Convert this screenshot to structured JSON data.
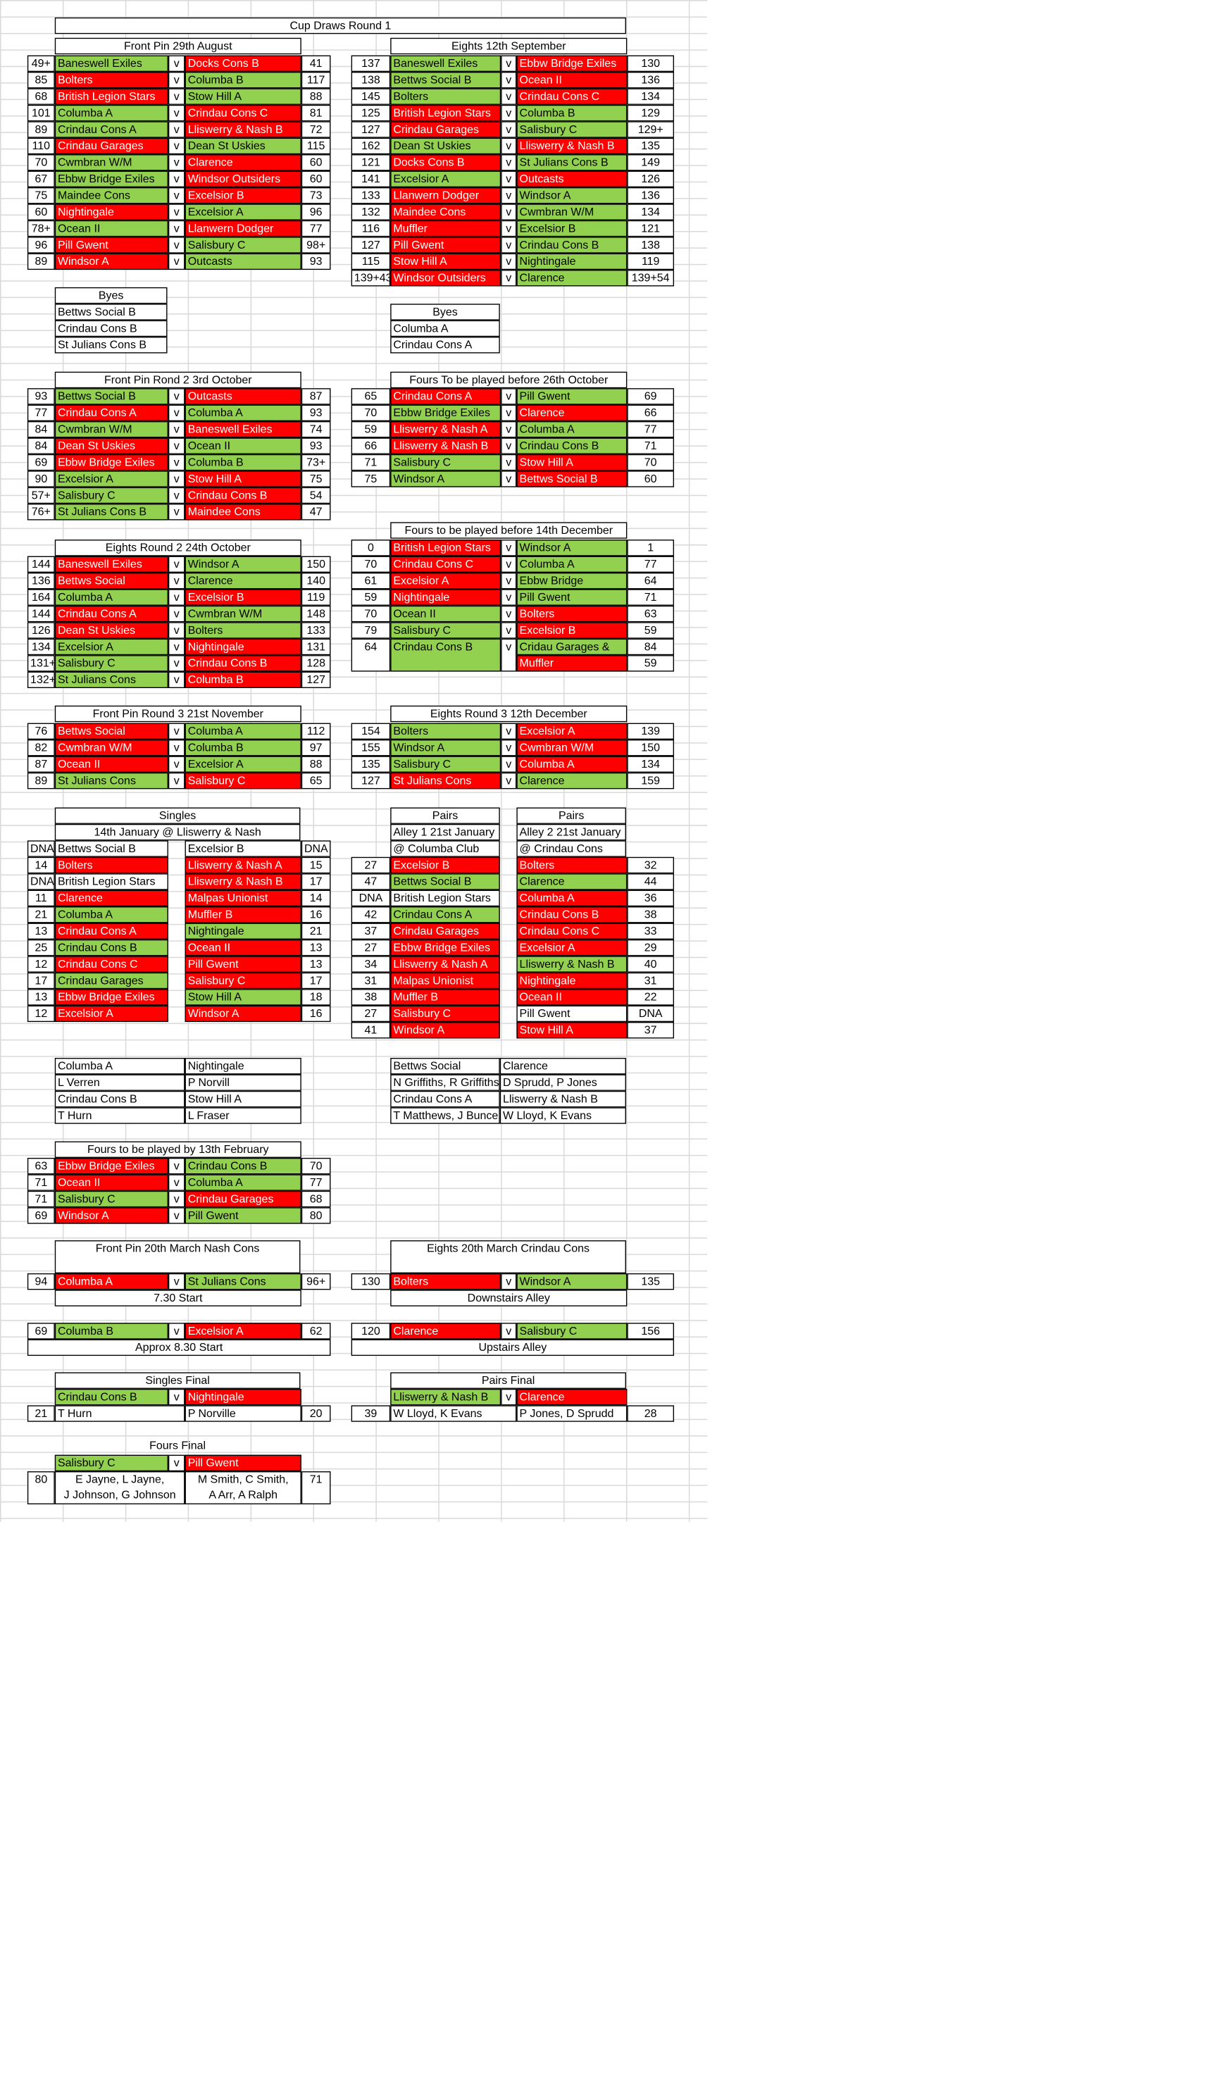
{
  "page_title": "Cup Draws Round 1",
  "tables": [
    {
      "title": "Front Pin  29th August",
      "rows": [
        [
          "49+",
          "Baneswell Exiles",
          "g",
          "Docks Cons B",
          "red",
          "41"
        ],
        [
          "85",
          "Bolters",
          "red",
          "Columba B",
          "g",
          "117"
        ],
        [
          "68",
          "British Legion Stars",
          "red",
          "Stow Hill A",
          "g",
          "88"
        ],
        [
          "101",
          "Columba A",
          "g",
          "Crindau Cons C",
          "red",
          "81"
        ],
        [
          "89",
          "Crindau Cons A",
          "g",
          "Lliswerry & Nash B",
          "red",
          "72"
        ],
        [
          "110",
          "Crindau Garages",
          "red",
          "Dean St Uskies",
          "g",
          "115"
        ],
        [
          "70",
          "Cwmbran W/M",
          "g",
          "Clarence",
          "red",
          "60"
        ],
        [
          "67",
          "Ebbw Bridge Exiles",
          "g",
          "Windsor Outsiders",
          "red",
          "60"
        ],
        [
          "75",
          "Maindee Cons",
          "g",
          "Excelsior B",
          "red",
          "73"
        ],
        [
          "60",
          "Nightingale",
          "red",
          "Excelsior A",
          "g",
          "96"
        ],
        [
          "78+",
          "Ocean II",
          "g",
          "Llanwern Dodger",
          "red",
          "77"
        ],
        [
          "96",
          "Pill Gwent",
          "red",
          "Salisbury C",
          "g",
          "98+"
        ],
        [
          "89",
          "Windsor A",
          "red",
          "Outcasts",
          "g",
          "93"
        ]
      ]
    },
    {
      "title": "Eights 12th September",
      "rows": [
        [
          "137",
          "Baneswell Exiles",
          "g",
          "Ebbw Bridge Exiles",
          "red",
          "130"
        ],
        [
          "138",
          "Bettws Social B",
          "g",
          "Ocean II",
          "red",
          "136"
        ],
        [
          "145",
          "Bolters",
          "g",
          "Crindau Cons C",
          "red",
          "134"
        ],
        [
          "125",
          "British Legion Stars",
          "red",
          "Columba B",
          "g",
          "129"
        ],
        [
          "127",
          "Crindau Garages",
          "red",
          "Salisbury C",
          "g",
          "129+"
        ],
        [
          "162",
          "Dean St Uskies",
          "g",
          "Lliswerry & Nash B",
          "red",
          "135"
        ],
        [
          "121",
          "Docks Cons B",
          "red",
          "St Julians Cons B",
          "g",
          "149"
        ],
        [
          "141",
          "Excelsior A",
          "g",
          "Outcasts",
          "red",
          "126"
        ],
        [
          "133",
          "Llanwern Dodger",
          "red",
          "Windsor A",
          "g",
          "136"
        ],
        [
          "132",
          "Maindee Cons",
          "red",
          "Cwmbran W/M",
          "g",
          "134"
        ],
        [
          "116",
          "Muffler",
          "red",
          "Excelsior B",
          "g",
          "121"
        ],
        [
          "127",
          "Pill Gwent",
          "red",
          "Crindau Cons B",
          "g",
          "138"
        ],
        [
          "115",
          "Stow Hill A",
          "red",
          "Nightingale",
          "g",
          "119"
        ],
        [
          "139+43",
          "Windsor Outsiders",
          "red",
          "Clarence",
          "g",
          "139+54"
        ]
      ]
    },
    {
      "title": "Front Pin Rond 2  3rd October",
      "rows": [
        [
          "93",
          "Bettws Social B",
          "g",
          "Outcasts",
          "red",
          "87"
        ],
        [
          "77",
          "Crindau Cons A",
          "red",
          "Columba A",
          "g",
          "93"
        ],
        [
          "84",
          "Cwmbran W/M",
          "g",
          "Baneswell Exiles",
          "red",
          "74"
        ],
        [
          "84",
          "Dean St Uskies",
          "red",
          "Ocean II",
          "g",
          "93"
        ],
        [
          "69",
          "Ebbw Bridge Exiles",
          "red",
          "Columba B",
          "g",
          "73+"
        ],
        [
          "90",
          "Excelsior A",
          "g",
          "Stow Hill A",
          "red",
          "75"
        ],
        [
          "57+",
          "Salisbury C",
          "g",
          "Crindau Cons B",
          "red",
          "54"
        ],
        [
          "76+",
          "St Julians Cons B",
          "g",
          "Maindee Cons",
          "red",
          "47"
        ]
      ]
    },
    {
      "title": "Fours To be played before 26th October",
      "rows": [
        [
          "65",
          "Crindau Cons A",
          "red",
          "Pill Gwent",
          "g",
          "69"
        ],
        [
          "70",
          "Ebbw Bridge Exiles",
          "g",
          "Clarence",
          "red",
          "66"
        ],
        [
          "59",
          "Lliswerry & Nash A",
          "red",
          "Columba A",
          "g",
          "77"
        ],
        [
          "66",
          "Lliswerry & Nash B",
          "red",
          "Crindau Cons B",
          "g",
          "71"
        ],
        [
          "71",
          "Salisbury C",
          "g",
          "Stow Hill A",
          "red",
          "70"
        ],
        [
          "75",
          "Windsor A",
          "g",
          "Bettws Social B",
          "red",
          "60"
        ]
      ]
    },
    {
      "title": "Eights Round 2 24th October",
      "rows": [
        [
          "144",
          "Baneswell Exiles",
          "red",
          "Windsor A",
          "g",
          "150"
        ],
        [
          "136",
          "Bettws Social",
          "red",
          "Clarence",
          "g",
          "140"
        ],
        [
          "164",
          "Columba A",
          "g",
          "Excelsior B",
          "red",
          "119"
        ],
        [
          "144",
          "Crindau Cons A",
          "red",
          "Cwmbran W/M",
          "g",
          "148"
        ],
        [
          "126",
          "Dean St Uskies",
          "red",
          "Bolters",
          "g",
          "133"
        ],
        [
          "134",
          "Excelsior A",
          "g",
          "Nightingale",
          "red",
          "131"
        ],
        [
          "131+",
          "Salisbury C",
          "g",
          "Crindau Cons B",
          "red",
          "128"
        ],
        [
          "132+",
          "St Julians Cons",
          "g",
          "Columba B",
          "red",
          "127"
        ]
      ]
    },
    {
      "title": "Fours to be played before 14th December",
      "rows": [
        [
          "0",
          "British Legion Stars",
          "red",
          "Windsor A",
          "g",
          "1"
        ],
        [
          "70",
          "Crindau Cons C",
          "red",
          "Columba A",
          "g",
          "77"
        ],
        [
          "61",
          "Excelsior A",
          "red",
          "Ebbw Bridge",
          "g",
          "64"
        ],
        [
          "59",
          "Nightingale",
          "red",
          "Pill Gwent",
          "g",
          "71"
        ],
        [
          "70",
          "Ocean II",
          "g",
          "Bolters",
          "red",
          "63"
        ],
        [
          "79",
          "Salisbury C",
          "g",
          "Excelsior B",
          "red",
          "59"
        ]
      ],
      "extra": {
        "left_score": "64",
        "left": "Crindau Cons B",
        "r1": "Cridau Garages &",
        "s1": "84",
        "r2": "Muffler",
        "s2": "59"
      }
    },
    {
      "title": "Front Pin Round 3 21st November",
      "rows": [
        [
          "76",
          "Bettws Social",
          "red",
          "Columba A",
          "g",
          "112"
        ],
        [
          "82",
          "Cwmbran W/M",
          "red",
          "Columba B",
          "g",
          "97"
        ],
        [
          "87",
          "Ocean II",
          "red",
          "Excelsior A",
          "g",
          "88"
        ],
        [
          "89",
          "St Julians Cons",
          "g",
          "Salisbury C",
          "red",
          "65"
        ]
      ]
    },
    {
      "title": "Eights Round 3 12th December",
      "rows": [
        [
          "154",
          "Bolters",
          "g",
          "Excelsior A",
          "red",
          "139"
        ],
        [
          "155",
          "Windsor A",
          "g",
          "Cwmbran W/M",
          "red",
          "150"
        ],
        [
          "135",
          "Salisbury C",
          "g",
          "Columba A",
          "red",
          "134"
        ],
        [
          "127",
          "St Julians Cons",
          "red",
          "Clarence",
          "g",
          "159"
        ]
      ]
    },
    {
      "title": "Fours to be played by 13th February",
      "rows": [
        [
          "63",
          "Ebbw Bridge Exiles",
          "red",
          "Crindau Cons B",
          "g",
          "70"
        ],
        [
          "71",
          "Ocean II",
          "red",
          "Columba A",
          "g",
          "77"
        ],
        [
          "71",
          "Salisbury C",
          "g",
          "Crindau Garages",
          "red",
          "68"
        ],
        [
          "69",
          "Windsor A",
          "red",
          "Pill Gwent",
          "g",
          "80"
        ]
      ]
    }
  ],
  "byes1": {
    "title": "Byes",
    "items": [
      "Bettws Social B",
      "Crindau Cons B",
      "St Julians Cons B"
    ]
  },
  "byes2": {
    "title": "Byes",
    "items": [
      "Columba A",
      "Crindau Cons A"
    ]
  },
  "singles": {
    "title": "Singles",
    "subtitle": "14th January  @ Lliswerry & Nash",
    "rows": [
      [
        "DNA",
        "Bettws Social B",
        "w",
        "Excelsior B",
        "w",
        "DNA"
      ],
      [
        "14",
        "Bolters",
        "red",
        "Lliswerry & Nash A",
        "red",
        "15"
      ],
      [
        "DNA",
        "British Legion Stars",
        "w",
        "Lliswerry & Nash B",
        "red",
        "17"
      ],
      [
        "11",
        "Clarence",
        "red",
        "Malpas Unionist",
        "red",
        "14"
      ],
      [
        "21",
        "Columba A",
        "g",
        "Muffler B",
        "red",
        "16"
      ],
      [
        "13",
        "Crindau Cons A",
        "red",
        "Nightingale",
        "g",
        "21"
      ],
      [
        "25",
        "Crindau Cons B",
        "g",
        "Ocean II",
        "red",
        "13"
      ],
      [
        "12",
        "Crindau Cons C",
        "red",
        "Pill Gwent",
        "red",
        "13"
      ],
      [
        "17",
        "Crindau Garages",
        "g",
        "Salisbury C",
        "red",
        "17"
      ],
      [
        "13",
        "Ebbw Bridge Exiles",
        "red",
        "Stow Hill A",
        "g",
        "18"
      ],
      [
        "12",
        "Excelsior A",
        "red",
        "Windsor A",
        "red",
        "16"
      ]
    ]
  },
  "pairs1": {
    "title": "Pairs",
    "sub1": "Alley 1 21st January",
    "sub2": "@ Columba Club"
  },
  "pairs2": {
    "title": "Pairs",
    "sub1": "Alley 2 21st January",
    "sub2": "@ Crindau Cons"
  },
  "pairs_rows": [
    [
      "27",
      "Excelsior B",
      "red",
      "Bolters",
      "red",
      "32"
    ],
    [
      "47",
      "Bettws Social B",
      "g",
      "Clarence",
      "g",
      "44"
    ],
    [
      "DNA",
      "British Legion Stars",
      "w",
      "Columba A",
      "red",
      "36"
    ],
    [
      "42",
      "Crindau Cons A",
      "g",
      "Crindau Cons B",
      "red",
      "38"
    ],
    [
      "37",
      "Crindau Garages",
      "red",
      "Crindau Cons C",
      "red",
      "33"
    ],
    [
      "27",
      "Ebbw Bridge Exiles",
      "red",
      "Excelsior A",
      "red",
      "29"
    ],
    [
      "34",
      "Lliswerry & Nash A",
      "red",
      "Lliswerry & Nash B",
      "g",
      "40"
    ],
    [
      "31",
      "Malpas Unionist",
      "red",
      "Nightingale",
      "red",
      "31"
    ],
    [
      "38",
      "Muffler B",
      "red",
      "Ocean II",
      "red",
      "22"
    ],
    [
      "27",
      "Salisbury C",
      "red",
      "Pill Gwent",
      "w",
      "DNA"
    ],
    [
      "41",
      "Windsor A",
      "red",
      "Stow Hill A",
      "red",
      "37"
    ]
  ],
  "qual_singles": [
    [
      "Columba A",
      "Nightingale"
    ],
    [
      "L Verren",
      "P Norvill"
    ],
    [
      "Crindau Cons B",
      "Stow Hill A"
    ],
    [
      "T Hurn",
      "L Fraser"
    ]
  ],
  "qual_pairs": [
    [
      "Bettws Social",
      "Clarence"
    ],
    [
      "N Griffiths, R Griffiths",
      "D Sprudd, P Jones"
    ],
    [
      "Crindau Cons A",
      "Lliswerry & Nash B"
    ],
    [
      "T Matthews, J Bunce",
      "W Lloyd, K Evans"
    ]
  ],
  "semis": {
    "fp_title": "Front Pin 20th March  Nash Cons",
    "e_title": "Eights 20th March  Crindau Cons",
    "fp1": [
      "94",
      "Columba A",
      "red",
      "St Julians Cons",
      "g",
      "96+"
    ],
    "fp1_note": "7.30 Start",
    "fp2": [
      "69",
      "Columba B",
      "g",
      "Excelsior A",
      "red",
      "62"
    ],
    "fp2_note": "Approx 8.30 Start",
    "e1": [
      "130",
      "Bolters",
      "red",
      "Windsor A",
      "g",
      "135"
    ],
    "e1_note": "Downstairs Alley",
    "e2": [
      "120",
      "Clarence",
      "red",
      "Salisbury C",
      "g",
      "156"
    ],
    "e2_note": "Upstairs Alley"
  },
  "finals": {
    "singles_title": "Singles Final",
    "s_left": "Crindau Cons B",
    "s_right": "Nightingale",
    "s_lscore": "21",
    "s_lname": "T Hurn",
    "s_rname": "P Norville",
    "s_rscore": "20",
    "pairs_title": "Pairs Final",
    "p_left": "Lliswerry & Nash B",
    "p_right": "Clarence",
    "p_lscore": "39",
    "p_lname": "W Lloyd, K Evans",
    "p_rname": "P Jones, D Sprudd",
    "p_rscore": "28",
    "fours_title": "Fours Final",
    "f_left": "Salisbury C",
    "f_right": "Pill Gwent",
    "f_lscore": "80",
    "f_lnames": "E Jayne, L Jayne,\nJ Johnson, G Johnson",
    "f_rnames": "M Smith, C Smith,\nA Arr, A Ralph",
    "f_rscore": "71"
  },
  "v": "v",
  "colors": {
    "green": "#92d050",
    "red": "#ff0000"
  }
}
